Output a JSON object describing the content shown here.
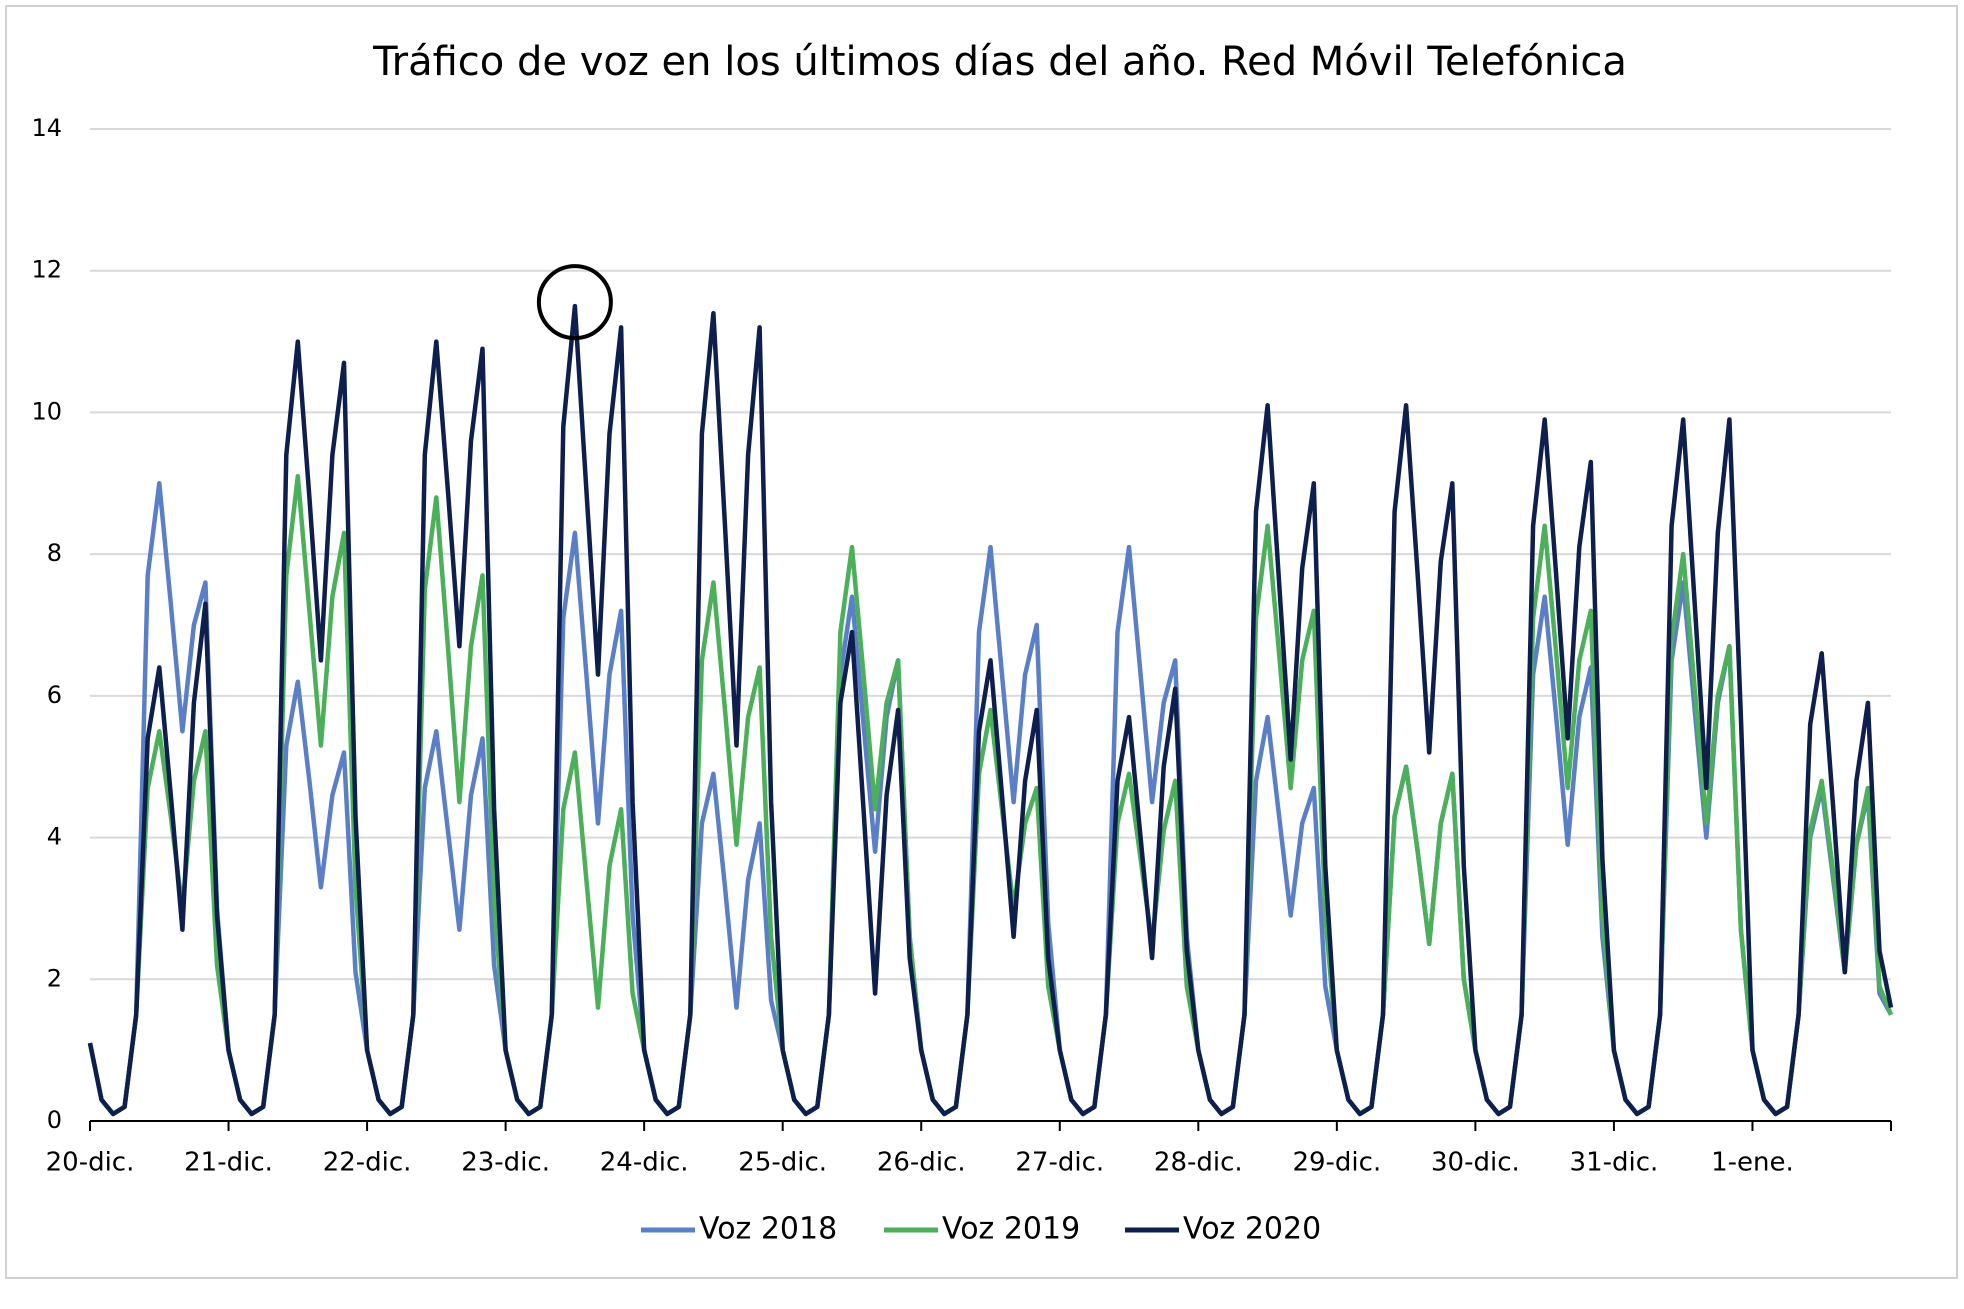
{
  "chart_data": {
    "type": "line",
    "title": "Tráfico de voz en los últimos días del año. Red Móvil Telefónica",
    "categories": [
      "20-dic.",
      null,
      null,
      null,
      null,
      null,
      null,
      null,
      null,
      null,
      null,
      null,
      "21-dic.",
      null,
      null,
      null,
      null,
      null,
      null,
      null,
      null,
      null,
      null,
      null,
      "22-dic.",
      null,
      null,
      null,
      null,
      null,
      null,
      null,
      null,
      null,
      null,
      null,
      "23-dic.",
      null,
      null,
      null,
      null,
      null,
      null,
      null,
      null,
      null,
      null,
      null,
      "24-dic.",
      null,
      null,
      null,
      null,
      null,
      null,
      null,
      null,
      null,
      null,
      null,
      "25-dic.",
      null,
      null,
      null,
      null,
      null,
      null,
      null,
      null,
      null,
      null,
      null,
      "26-dic.",
      null,
      null,
      null,
      null,
      null,
      null,
      null,
      null,
      null,
      null,
      null,
      "27-dic.",
      null,
      null,
      null,
      null,
      null,
      null,
      null,
      null,
      null,
      null,
      null,
      "28-dic.",
      null,
      null,
      null,
      null,
      null,
      null,
      null,
      null,
      null,
      null,
      null,
      "29-dic.",
      null,
      null,
      null,
      null,
      null,
      null,
      null,
      null,
      null,
      null,
      null,
      "30-dic.",
      null,
      null,
      null,
      null,
      null,
      null,
      null,
      null,
      null,
      null,
      null,
      "31-dic.",
      null,
      null,
      null,
      null,
      null,
      null,
      null,
      null,
      null,
      null,
      null,
      "1-ene.",
      null,
      null,
      null,
      null,
      null,
      null,
      null,
      null,
      null,
      null,
      null,
      null
    ],
    "series": [
      {
        "name": "Voz 2018",
        "color": "#5b7fc7",
        "values": [
          1.1,
          0.3,
          0.1,
          0.2,
          1.5,
          7.7,
          9.0,
          7.3,
          5.5,
          7.0,
          7.6,
          3.0,
          1.0,
          0.3,
          0.1,
          0.2,
          1.5,
          5.3,
          6.2,
          4.8,
          3.3,
          4.6,
          5.2,
          2.1,
          1.0,
          0.3,
          0.1,
          0.2,
          1.5,
          4.7,
          5.5,
          4.1,
          2.7,
          4.6,
          5.4,
          2.2,
          1.0,
          0.3,
          0.1,
          0.2,
          1.5,
          7.1,
          8.3,
          6.3,
          4.2,
          6.3,
          7.2,
          2.9,
          1.0,
          0.3,
          0.1,
          0.2,
          1.5,
          4.2,
          4.9,
          3.3,
          1.6,
          3.4,
          4.2,
          1.7,
          1.0,
          0.3,
          0.1,
          0.2,
          1.5,
          6.3,
          7.4,
          5.6,
          3.8,
          5.7,
          6.5,
          2.6,
          1.0,
          0.3,
          0.1,
          0.2,
          1.5,
          6.9,
          8.1,
          6.3,
          4.5,
          6.3,
          7.0,
          2.8,
          1.0,
          0.3,
          0.1,
          0.2,
          1.5,
          6.9,
          8.1,
          6.3,
          4.5,
          5.9,
          6.5,
          2.6,
          1.0,
          0.3,
          0.1,
          0.2,
          1.5,
          4.8,
          5.7,
          4.3,
          2.9,
          4.2,
          4.7,
          1.9,
          1.0,
          0.3,
          0.1,
          0.2,
          1.5,
          4.3,
          5.0,
          3.8,
          2.5,
          4.2,
          4.9,
          2.0,
          1.0,
          0.3,
          0.1,
          0.2,
          1.5,
          6.3,
          7.4,
          5.7,
          3.9,
          5.7,
          6.4,
          2.6,
          1.0,
          0.3,
          0.1,
          0.2,
          1.5,
          6.5,
          7.6,
          5.8,
          4.0,
          5.9,
          6.7,
          2.7,
          1.0,
          0.3,
          0.1,
          0.2,
          1.5,
          4.0,
          4.7,
          3.4,
          2.1,
          3.9,
          4.6,
          1.8,
          1.5
        ]
      },
      {
        "name": "Voz 2019",
        "color": "#4caf5a",
        "values": [
          1.1,
          0.3,
          0.1,
          0.2,
          1.5,
          4.7,
          5.5,
          4.3,
          3.0,
          4.8,
          5.5,
          2.2,
          1.0,
          0.3,
          0.1,
          0.2,
          1.5,
          7.7,
          9.1,
          7.2,
          5.3,
          7.4,
          8.3,
          3.3,
          1.0,
          0.3,
          0.1,
          0.2,
          1.5,
          7.5,
          8.8,
          6.7,
          4.5,
          6.7,
          7.7,
          3.1,
          1.0,
          0.3,
          0.1,
          0.2,
          1.5,
          4.4,
          5.2,
          3.4,
          1.6,
          3.6,
          4.4,
          1.8,
          1.0,
          0.3,
          0.1,
          0.2,
          1.5,
          6.5,
          7.6,
          5.8,
          3.9,
          5.7,
          6.4,
          2.6,
          1.0,
          0.3,
          0.1,
          0.2,
          1.5,
          6.9,
          8.1,
          6.3,
          4.4,
          5.9,
          6.5,
          2.6,
          1.0,
          0.3,
          0.1,
          0.2,
          1.5,
          4.9,
          5.8,
          4.4,
          3.0,
          4.2,
          4.7,
          1.9,
          1.0,
          0.3,
          0.1,
          0.2,
          1.5,
          4.2,
          4.9,
          3.7,
          2.5,
          4.1,
          4.8,
          1.9,
          1.0,
          0.3,
          0.1,
          0.2,
          1.5,
          7.1,
          8.4,
          6.6,
          4.7,
          6.5,
          7.2,
          2.9,
          1.0,
          0.3,
          0.1,
          0.2,
          1.5,
          4.3,
          5.0,
          3.8,
          2.5,
          4.2,
          4.9,
          2.0,
          1.0,
          0.3,
          0.1,
          0.2,
          1.5,
          7.1,
          8.4,
          6.6,
          4.7,
          6.5,
          7.2,
          2.9,
          1.0,
          0.3,
          0.1,
          0.2,
          1.5,
          6.8,
          8.0,
          6.1,
          4.2,
          6.0,
          6.7,
          2.7,
          1.0,
          0.3,
          0.1,
          0.2,
          1.5,
          4.1,
          4.8,
          3.5,
          2.1,
          3.9,
          4.7,
          1.9,
          1.5
        ]
      },
      {
        "name": "Voz 2020",
        "color": "#0e1f4d",
        "values": [
          1.1,
          0.3,
          0.1,
          0.2,
          1.5,
          5.4,
          6.4,
          4.6,
          2.7,
          5.9,
          7.3,
          2.9,
          1.0,
          0.3,
          0.1,
          0.2,
          1.5,
          9.4,
          11.0,
          8.8,
          6.5,
          9.4,
          10.7,
          4.3,
          1.0,
          0.3,
          0.1,
          0.2,
          1.5,
          9.4,
          11.0,
          8.9,
          6.7,
          9.6,
          10.9,
          4.4,
          1.0,
          0.3,
          0.1,
          0.2,
          1.5,
          9.8,
          11.5,
          8.9,
          6.3,
          9.7,
          11.2,
          4.5,
          1.0,
          0.3,
          0.1,
          0.2,
          1.5,
          9.7,
          11.4,
          8.4,
          5.3,
          9.4,
          11.2,
          4.5,
          1.0,
          0.3,
          0.1,
          0.2,
          1.5,
          5.9,
          6.9,
          4.4,
          1.8,
          4.6,
          5.8,
          2.3,
          1.0,
          0.3,
          0.1,
          0.2,
          1.5,
          5.5,
          6.5,
          4.6,
          2.6,
          4.8,
          5.8,
          2.3,
          1.0,
          0.3,
          0.1,
          0.2,
          1.5,
          4.8,
          5.7,
          4.0,
          2.3,
          5.0,
          6.1,
          2.4,
          1.0,
          0.3,
          0.1,
          0.2,
          1.5,
          8.6,
          10.1,
          7.6,
          5.1,
          7.8,
          9.0,
          3.6,
          1.0,
          0.3,
          0.1,
          0.2,
          1.5,
          8.6,
          10.1,
          7.7,
          5.2,
          7.9,
          9.0,
          3.6,
          1.0,
          0.3,
          0.1,
          0.2,
          1.5,
          8.4,
          9.9,
          7.7,
          5.4,
          8.1,
          9.3,
          3.7,
          1.0,
          0.3,
          0.1,
          0.2,
          1.5,
          8.4,
          9.9,
          7.3,
          4.7,
          8.3,
          9.9,
          5.7,
          1.0,
          0.3,
          0.1,
          0.2,
          1.5,
          5.6,
          6.6,
          4.4,
          2.1,
          4.8,
          5.9,
          2.4,
          1.6
        ]
      }
    ],
    "ylim": [
      0,
      14
    ],
    "yticks": [
      0,
      2,
      4,
      6,
      8,
      10,
      12,
      14
    ],
    "grid": true,
    "legend": "bottom"
  }
}
